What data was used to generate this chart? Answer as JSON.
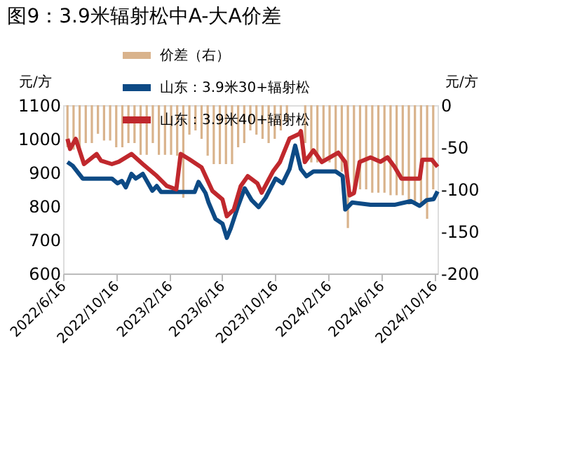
{
  "chart_data": {
    "type": "line",
    "title": "图9：3.9米辐射松中A-大A价差",
    "ylabel": "元/方",
    "y2label": "元/方",
    "xlim": [
      "2022-06-16",
      "2024-10-23"
    ],
    "xticks": [
      {
        "value": "2022-06-16",
        "label": "2022/6/16"
      },
      {
        "value": "2022-10-16",
        "label": "2022/10/16"
      },
      {
        "value": "2023-02-16",
        "label": "2023/2/16"
      },
      {
        "value": "2023-06-16",
        "label": "2023/6/16"
      },
      {
        "value": "2023-10-16",
        "label": "2023/10/16"
      },
      {
        "value": "2024-02-16",
        "label": "2024/2/16"
      },
      {
        "value": "2024-06-16",
        "label": "2024/6/16"
      },
      {
        "value": "2024-10-16",
        "label": "2024/10/16"
      }
    ],
    "ylim": [
      600,
      1100
    ],
    "yticks": [
      600,
      700,
      800,
      900,
      1000,
      1100
    ],
    "y2lim": [
      -200,
      0
    ],
    "y2ticks": [
      -200,
      -150,
      -100,
      -50,
      0
    ],
    "legend": "top",
    "grid": false,
    "marker": "none",
    "line_style": "solid",
    "series": [
      {
        "name": "价差（右）",
        "type": "bar",
        "axis": "y2",
        "color": "#d9b38c",
        "x": [
          "2022-06-26",
          "2022-07-10",
          "2022-07-24",
          "2022-08-07",
          "2022-08-21",
          "2022-09-04",
          "2022-09-18",
          "2022-10-02",
          "2022-10-16",
          "2022-10-30",
          "2022-11-13",
          "2022-11-27",
          "2022-12-11",
          "2022-12-25",
          "2023-01-08",
          "2023-01-22",
          "2023-02-05",
          "2023-02-19",
          "2023-03-05",
          "2023-03-19",
          "2023-04-02",
          "2023-04-16",
          "2023-04-30",
          "2023-05-14",
          "2023-05-28",
          "2023-06-11",
          "2023-06-25",
          "2023-07-09",
          "2023-07-23",
          "2023-08-06",
          "2023-08-20",
          "2023-09-03",
          "2023-09-17",
          "2023-10-01",
          "2023-10-15",
          "2023-10-29",
          "2023-11-12",
          "2023-11-26",
          "2023-12-10",
          "2023-12-24",
          "2024-01-07",
          "2024-01-21",
          "2024-02-04",
          "2024-02-18",
          "2024-03-03",
          "2024-03-17",
          "2024-03-31",
          "2024-04-14",
          "2024-04-28",
          "2024-05-12",
          "2024-05-26",
          "2024-06-09",
          "2024-06-23",
          "2024-07-07",
          "2024-07-21",
          "2024-08-04",
          "2024-08-18",
          "2024-09-01",
          "2024-09-15",
          "2024-09-29",
          "2024-10-13"
        ],
        "values": [
          -50,
          -53,
          -53,
          -45,
          -45,
          -34,
          -42,
          -42,
          -50,
          -50,
          -45,
          -45,
          -59,
          -59,
          -45,
          -59,
          -59,
          -59,
          -60,
          -110,
          -35,
          -30,
          -40,
          -60,
          -70,
          -70,
          -70,
          -70,
          -50,
          -45,
          -30,
          -35,
          -40,
          -45,
          -40,
          -30,
          -20,
          null,
          null,
          -45,
          -68,
          -68,
          -68,
          -68,
          -79,
          -79,
          -146,
          -100,
          -100,
          -100,
          -104,
          -104,
          -104,
          -107,
          -107,
          -107,
          -118,
          -118,
          -118,
          -135,
          -100
        ]
      },
      {
        "name": "山东：3.9米30+辐射松",
        "color": "#0d4a85",
        "x": [
          "2022-06-26",
          "2022-07-08",
          "2022-07-31",
          "2022-09-11",
          "2022-10-06",
          "2022-10-19",
          "2022-10-29",
          "2022-11-07",
          "2022-11-20",
          "2022-11-30",
          "2022-12-16",
          "2023-01-07",
          "2023-01-17",
          "2023-01-27",
          "2023-02-28",
          "2023-04-14",
          "2023-04-23",
          "2023-05-09",
          "2023-05-16",
          "2023-06-01",
          "2023-06-17",
          "2023-06-27",
          "2023-07-06",
          "2023-07-22",
          "2023-08-07",
          "2023-08-23",
          "2023-09-08",
          "2023-09-24",
          "2023-10-17",
          "2023-11-02",
          "2023-11-18",
          "2023-12-01",
          "2023-12-14",
          "2023-12-27",
          "2024-01-12",
          "2024-03-03",
          "2024-03-19",
          "2024-03-25",
          "2024-04-10",
          "2024-05-22",
          "2024-07-16",
          "2024-08-23",
          "2024-09-12",
          "2024-09-28",
          "2024-10-14",
          "2024-10-23"
        ],
        "values": [
          931,
          920,
          882,
          882,
          882,
          868,
          875,
          856,
          896,
          882,
          896,
          846,
          860,
          842,
          842,
          842,
          872,
          839,
          811,
          762,
          748,
          706,
          734,
          797,
          853,
          818,
          797,
          825,
          882,
          868,
          910,
          980,
          910,
          889,
          903,
          903,
          889,
          790,
          811,
          804,
          804,
          815,
          801,
          818,
          821,
          844
        ]
      },
      {
        "name": "山东：3.9米40+辐射松",
        "color": "#c0282d",
        "x": [
          "2022-06-26",
          "2022-07-02",
          "2022-07-15",
          "2022-08-03",
          "2022-09-01",
          "2022-09-11",
          "2022-10-06",
          "2022-10-22",
          "2022-11-20",
          "2022-12-16",
          "2023-01-17",
          "2023-02-09",
          "2023-03-03",
          "2023-03-13",
          "2023-04-01",
          "2023-04-30",
          "2023-05-25",
          "2023-06-17",
          "2023-06-27",
          "2023-07-13",
          "2023-07-29",
          "2023-08-14",
          "2023-09-05",
          "2023-09-15",
          "2023-10-11",
          "2023-10-27",
          "2023-11-18",
          "2023-12-11",
          "2023-12-14",
          "2023-12-23",
          "2024-01-12",
          "2024-01-31",
          "2024-03-09",
          "2024-03-25",
          "2024-04-04",
          "2024-04-14",
          "2024-04-27",
          "2024-05-22",
          "2024-06-14",
          "2024-06-30",
          "2024-07-16",
          "2024-08-01",
          "2024-09-12",
          "2024-09-18",
          "2024-10-10",
          "2024-10-23"
        ],
        "values": [
          1000,
          970,
          1000,
          925,
          955,
          935,
          925,
          932,
          955,
          925,
          890,
          860,
          850,
          955,
          940,
          915,
          845,
          820,
          770,
          790,
          860,
          889,
          868,
          840,
          903,
          931,
          1001,
          1015,
          1023,
          931,
          966,
          931,
          959,
          931,
          832,
          839,
          931,
          945,
          932,
          945,
          917,
          882,
          882,
          938,
          938,
          917
        ]
      }
    ]
  }
}
